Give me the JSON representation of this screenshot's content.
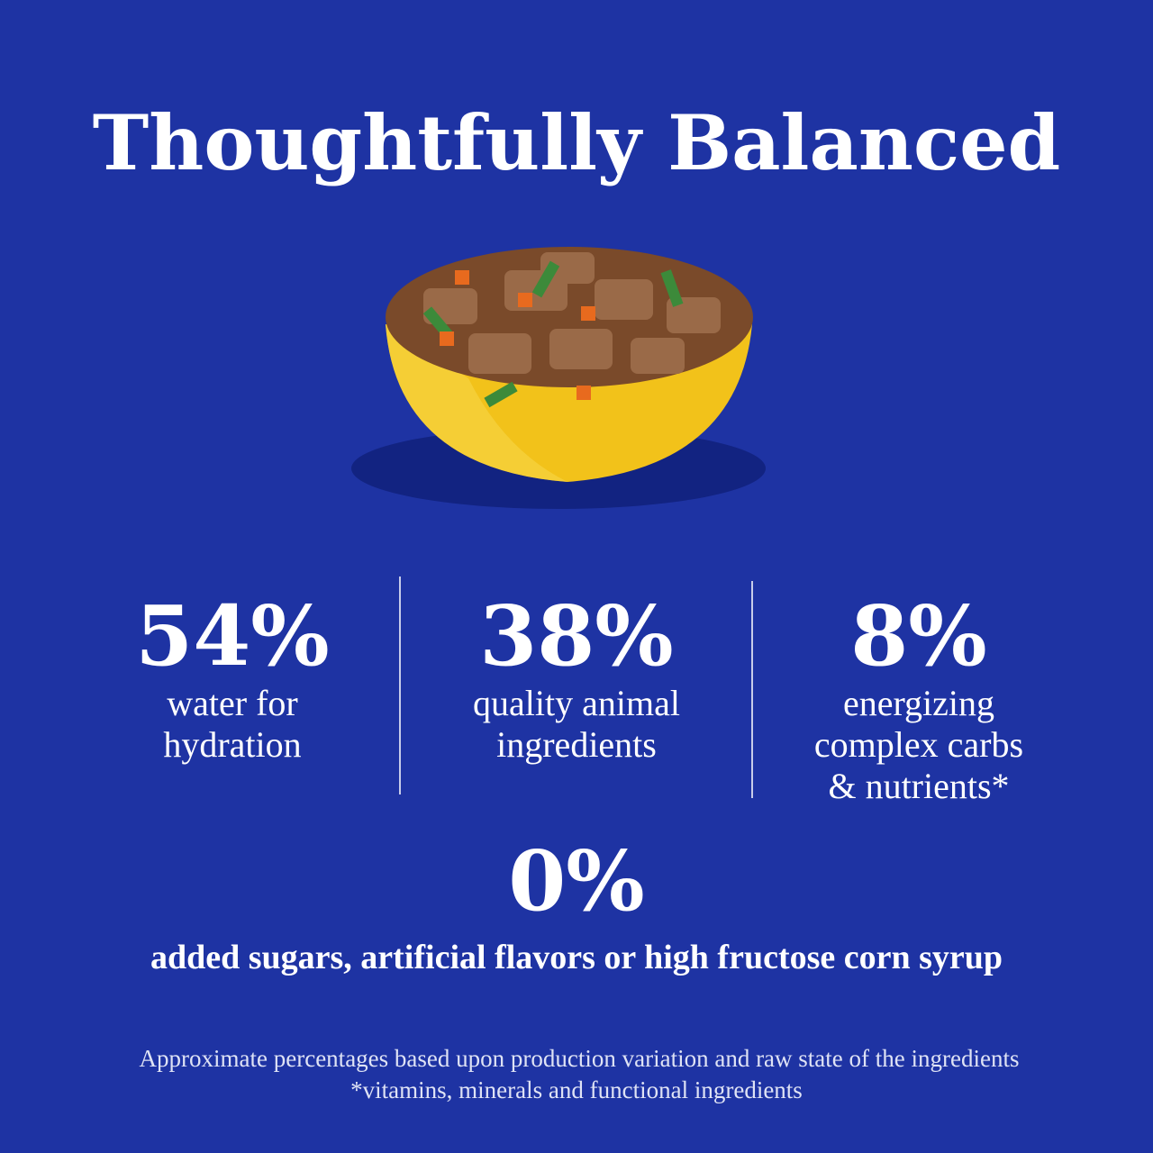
{
  "header": {
    "title": "Thoughtfully Balanced"
  },
  "stats": [
    {
      "value": "54%",
      "lines": [
        "water for",
        "hydration"
      ]
    },
    {
      "value": "38%",
      "lines": [
        "quality animal",
        "ingredients"
      ]
    },
    {
      "value": "8%",
      "lines": [
        "energizing",
        "complex carbs",
        "& nutrients*"
      ]
    }
  ],
  "highlight": {
    "value": "0%",
    "text": "added sugars, artificial flavors or high fructose corn syrup"
  },
  "footnotes": [
    "Approximate percentages based upon production variation and raw state of the ingredients",
    "*vitamins, minerals and functional ingredients"
  ]
}
